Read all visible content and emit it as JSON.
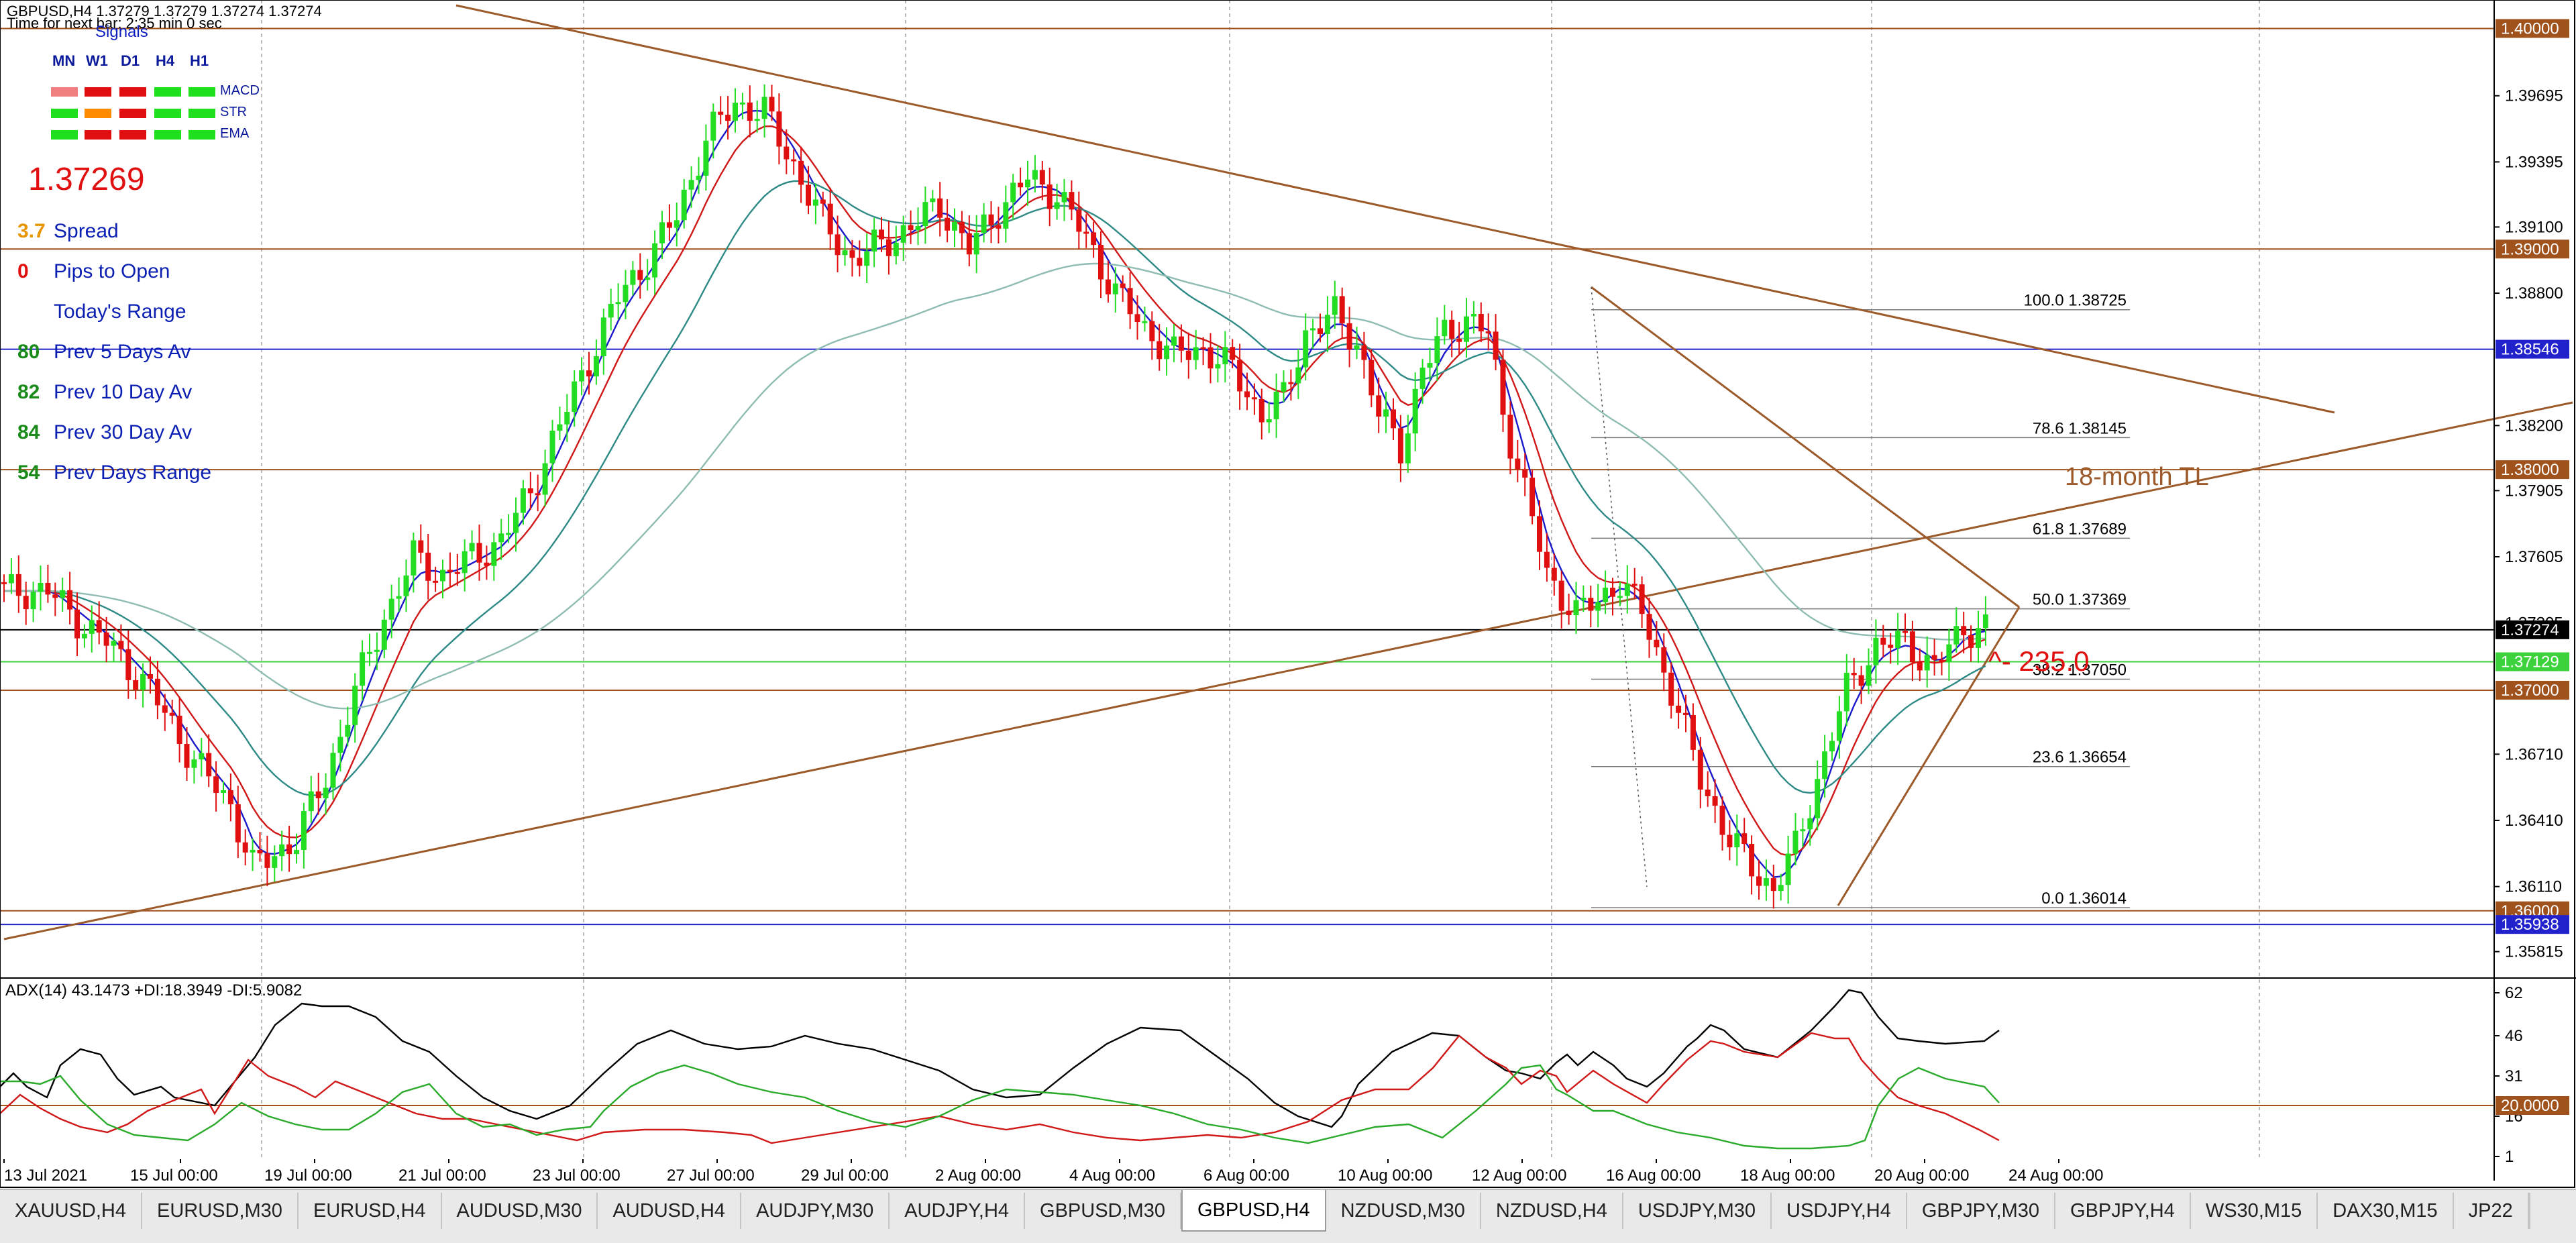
{
  "window": {
    "header": "GBPUSD,H4  1.37279 1.37279 1.37274 1.37274",
    "timer": "Time for next bar: 2:35 min 0 sec"
  },
  "signals": {
    "title": "Signals",
    "timeframes": [
      "MN",
      "W1",
      "D1",
      "H4",
      "H1"
    ],
    "rows": [
      {
        "name": "MACD",
        "colors": [
          "#f08080",
          "#e01010",
          "#e01010",
          "#1ee01e",
          "#1ee01e"
        ]
      },
      {
        "name": "STR",
        "colors": [
          "#1ee01e",
          "#ff8c00",
          "#e01010",
          "#1ee01e",
          "#1ee01e"
        ]
      },
      {
        "name": "EMA",
        "colors": [
          "#1ee01e",
          "#e01010",
          "#e01010",
          "#1ee01e",
          "#1ee01e"
        ]
      }
    ]
  },
  "current_price": "1.37269",
  "stats": [
    {
      "value": "3.7",
      "label": "Spread",
      "color": "#e69500"
    },
    {
      "value": "0",
      "label": "Pips to Open",
      "color": "#e01010"
    },
    {
      "value": "",
      "label": "Today's Range",
      "color": "#1a8a1a"
    },
    {
      "value": "80",
      "label": "Prev 5 Days Av",
      "color": "#1a8a1a"
    },
    {
      "value": "82",
      "label": "Prev 10 Day Av",
      "color": "#1a8a1a"
    },
    {
      "value": "84",
      "label": "Prev 30 Day Av",
      "color": "#1a8a1a"
    },
    {
      "value": "54",
      "label": "Prev Days Range",
      "color": "#1a8a1a"
    }
  ],
  "annotations": {
    "trendline_label": "18-month TL",
    "pips_label": "^- 235.0"
  },
  "price_axis": {
    "plain_ticks": [
      "1.39695",
      "1.39395",
      "1.39100",
      "1.38800",
      "1.38200",
      "1.37905",
      "1.37605",
      "1.36710",
      "1.36410",
      "1.36110",
      "1.35815"
    ],
    "hidden_tick": "1.37305",
    "boxed_levels": [
      {
        "price": 1.4,
        "label": "1.40000",
        "color": "#a0521d",
        "text_color": "#ffffff"
      },
      {
        "price": 1.39,
        "label": "1.39000",
        "color": "#a0521d",
        "text_color": "#ffffff"
      },
      {
        "price": 1.38546,
        "label": "1.38546",
        "color": "#2222cc",
        "text_color": "#ffffff"
      },
      {
        "price": 1.38,
        "label": "1.38000",
        "color": "#a0521d",
        "text_color": "#ffffff"
      },
      {
        "price": 1.37274,
        "label": "1.37274",
        "color": "#000000",
        "text_color": "#ffffff"
      },
      {
        "price": 1.37129,
        "label": "1.37129",
        "color": "#3cd23c",
        "text_color": "#ffffff"
      },
      {
        "price": 1.37,
        "label": "1.37000",
        "color": "#a0521d",
        "text_color": "#ffffff"
      },
      {
        "price": 1.36,
        "label": "1.36000",
        "color": "#a0521d",
        "text_color": "#ffffff"
      },
      {
        "price": 1.35938,
        "label": "1.35938",
        "color": "#2222cc",
        "text_color": "#ffffff"
      }
    ]
  },
  "fibonacci": [
    {
      "level": "100.0",
      "price": "1.38725"
    },
    {
      "level": "78.6",
      "price": "1.38145"
    },
    {
      "level": "61.8",
      "price": "1.37689"
    },
    {
      "level": "50.0",
      "price": "1.37369"
    },
    {
      "level": "38.2",
      "price": "1.37050"
    },
    {
      "level": "23.6",
      "price": "1.36654"
    },
    {
      "level": "0.0",
      "price": "1.36014"
    }
  ],
  "adx": {
    "header": "ADX(14) 43.1473 +DI:18.3949 -DI:5.9082",
    "ticks": [
      "62",
      "46",
      "31",
      "16",
      "1"
    ],
    "level_box": "20.0000",
    "level_color": "#a0521d"
  },
  "time_axis": [
    "13 Jul 2021",
    "15 Jul 00:00",
    "19 Jul 00:00",
    "21 Jul 00:00",
    "23 Jul 00:00",
    "27 Jul 00:00",
    "29 Jul 00:00",
    "2 Aug 00:00",
    "4 Aug 00:00",
    "6 Aug 00:00",
    "10 Aug 00:00",
    "12 Aug 00:00",
    "16 Aug 00:00",
    "18 Aug 00:00",
    "20 Aug 00:00",
    "24 Aug 00:00"
  ],
  "tabs": [
    "XAUUSD,H4",
    "EURUSD,M30",
    "EURUSD,H4",
    "AUDUSD,M30",
    "AUDUSD,H4",
    "AUDJPY,M30",
    "AUDJPY,H4",
    "GBPUSD,M30",
    "GBPUSD,H4",
    "NZDUSD,M30",
    "NZDUSD,H4",
    "USDJPY,M30",
    "USDJPY,H4",
    "GBPJPY,M30",
    "GBPJPY,H4",
    "WS30,M15",
    "DAX30,M15",
    "JP22"
  ],
  "active_tab": "GBPUSD,H4",
  "colors": {
    "bull": "#22dd22",
    "bear": "#e01010",
    "ema_fast": "#1a1acc",
    "ema_mid": "#d01818",
    "ema_slow": "#2e8a86",
    "ema_long": "#8fbcb2",
    "trendline": "#9c5a2a"
  },
  "price_path": [
    [
      0,
      1.3745
    ],
    [
      6,
      1.3745
    ],
    [
      10,
      1.3732
    ],
    [
      14,
      1.3722
    ],
    [
      20,
      1.37
    ],
    [
      26,
      1.3668
    ],
    [
      31,
      1.3648
    ],
    [
      34,
      1.362
    ],
    [
      36,
      1.3623
    ],
    [
      40,
      1.3633
    ],
    [
      44,
      1.366
    ],
    [
      48,
      1.37
    ],
    [
      52,
      1.3733
    ],
    [
      56,
      1.376
    ],
    [
      60,
      1.3752
    ],
    [
      64,
      1.376
    ],
    [
      68,
      1.3768
    ],
    [
      72,
      1.379
    ],
    [
      76,
      1.382
    ],
    [
      80,
      1.385
    ],
    [
      84,
      1.3878
    ],
    [
      88,
      1.3895
    ],
    [
      92,
      1.3915
    ],
    [
      96,
      1.395
    ],
    [
      100,
      1.3966
    ],
    [
      104,
      1.3962
    ],
    [
      108,
      1.3938
    ],
    [
      112,
      1.3912
    ],
    [
      116,
      1.3895
    ],
    [
      120,
      1.3902
    ],
    [
      124,
      1.391
    ],
    [
      128,
      1.392
    ],
    [
      132,
      1.39
    ],
    [
      136,
      1.3918
    ],
    [
      140,
      1.3932
    ],
    [
      144,
      1.3925
    ],
    [
      148,
      1.3905
    ],
    [
      152,
      1.388
    ],
    [
      156,
      1.3864
    ],
    [
      160,
      1.3852
    ],
    [
      164,
      1.3855
    ],
    [
      168,
      1.3845
    ],
    [
      172,
      1.3825
    ],
    [
      175,
      1.3832
    ],
    [
      178,
      1.3862
    ],
    [
      182,
      1.387
    ],
    [
      185,
      1.3858
    ],
    [
      188,
      1.3825
    ],
    [
      191,
      1.381
    ],
    [
      194,
      1.3845
    ],
    [
      197,
      1.3862
    ],
    [
      200,
      1.3868
    ],
    [
      203,
      1.3862
    ],
    [
      205,
      1.3826
    ],
    [
      208,
      1.379
    ],
    [
      211,
      1.3752
    ],
    [
      215,
      1.3735
    ],
    [
      218,
      1.374
    ],
    [
      221,
      1.375
    ],
    [
      224,
      1.3735
    ],
    [
      228,
      1.37
    ],
    [
      232,
      1.366
    ],
    [
      236,
      1.3632
    ],
    [
      240,
      1.3616
    ],
    [
      242,
      1.361
    ],
    [
      245,
      1.3628
    ],
    [
      248,
      1.366
    ],
    [
      252,
      1.37
    ],
    [
      256,
      1.372
    ],
    [
      260,
      1.3722
    ],
    [
      264,
      1.371
    ],
    [
      268,
      1.3728
    ]
  ]
}
